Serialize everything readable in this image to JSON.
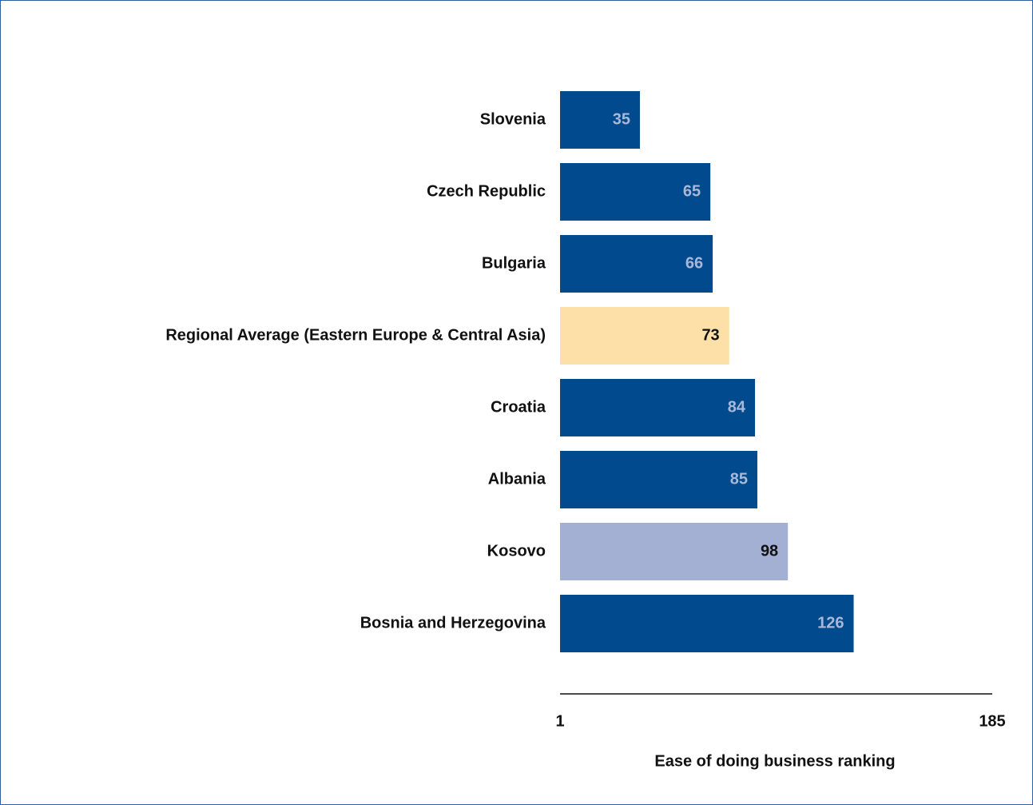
{
  "chart_data": {
    "type": "bar",
    "orientation": "horizontal",
    "categories": [
      "Slovenia",
      "Czech Republic",
      "Bulgaria",
      "Regional Average (Eastern Europe & Central Asia)",
      "Croatia",
      "Albania",
      "Kosovo",
      "Bosnia and Herzegovina"
    ],
    "values": [
      35,
      65,
      66,
      73,
      84,
      85,
      98,
      126
    ],
    "colors": [
      "#004a8d",
      "#004a8d",
      "#004a8d",
      "#fde0a8",
      "#004a8d",
      "#004a8d",
      "#a3b0d4",
      "#004a8d"
    ],
    "xlim": [
      1,
      185
    ],
    "xticks": [
      1,
      185
    ],
    "xlabel": "Ease of doing business ranking"
  }
}
